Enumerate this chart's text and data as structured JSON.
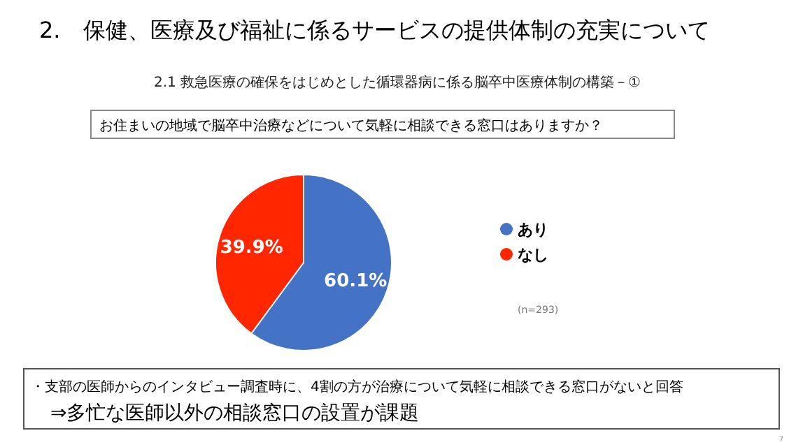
{
  "chart_data": {
    "type": "pie",
    "title": "2.　保健、医療及び福祉に係るサービスの提供体制の充実について",
    "subtitle": "2.1 救急医療の確保をはじめとした循環器病に係る脳卒中医療体制の構築－①",
    "categories": [
      "あり",
      "なし"
    ],
    "values": [
      60.1,
      39.9
    ],
    "colors": [
      "#4472c4",
      "#ff2600"
    ],
    "value_labels": [
      "60.1%",
      "39.9%"
    ],
    "legend": "right",
    "annotations": [
      "お住まいの地域で脳卒中治療などについて気軽に相談できる窓口はありますか？",
      "(n=293)",
      "・支部の医師からのインタビュー調査時に、4割の方が治療について気軽に相談できる窓口がないと回答",
      "⇒多忙な医師以外の相談窓口の設置が課題",
      "7"
    ]
  }
}
